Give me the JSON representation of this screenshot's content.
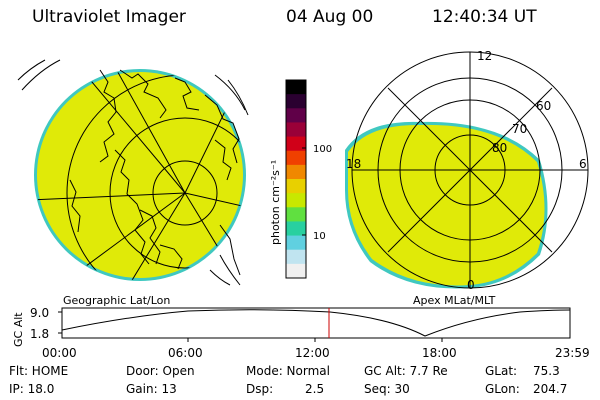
{
  "header": {
    "instrument": "Ultraviolet Imager",
    "date": "04 Aug 00",
    "time": "12:40:34 UT"
  },
  "left_panel": {
    "label": "Geographic Lat/Lon"
  },
  "right_panel": {
    "label": "Apex MLat/MLT",
    "mlt_labels": {
      "top": "12",
      "left": "18",
      "right": "6",
      "bottom": "0"
    },
    "mlat_labels": [
      "60",
      "70",
      "80"
    ]
  },
  "colorbar": {
    "unit": "photon cm⁻²s⁻¹",
    "ticks": [
      "100",
      "10"
    ],
    "colors": [
      "#000000",
      "#2a0030",
      "#600048",
      "#9a0038",
      "#d00018",
      "#f04000",
      "#f08800",
      "#e8d000",
      "#c8e800",
      "#60e040",
      "#28d0a0",
      "#60d0e0",
      "#c0e4f0",
      "#f0f0f0"
    ]
  },
  "altitude_plot": {
    "ylabel": "GC Alt",
    "y_ticks": [
      "9.0",
      "1.8"
    ],
    "x_ticks": [
      "00:00",
      "06:00",
      "12:00",
      "18:00",
      "23:59"
    ],
    "marker_color": "#cc0000"
  },
  "status": {
    "flt": "Flt: HOME",
    "ip": "IP: 18.0",
    "door": "Door: Open",
    "gain": "Gain: 13",
    "mode": "Mode: Normal",
    "dsp_label": "Dsp:",
    "dsp_value": "2.5",
    "gc_alt": "GC Alt: 7.7 Re",
    "seq": "Seq: 30",
    "glat_label": "GLat:",
    "glat_value": "75.3",
    "glon_label": "GLon:",
    "glon_value": "204.7"
  },
  "colors": {
    "emission": "#e0ea08",
    "emission_edge": "#30d0a0"
  }
}
